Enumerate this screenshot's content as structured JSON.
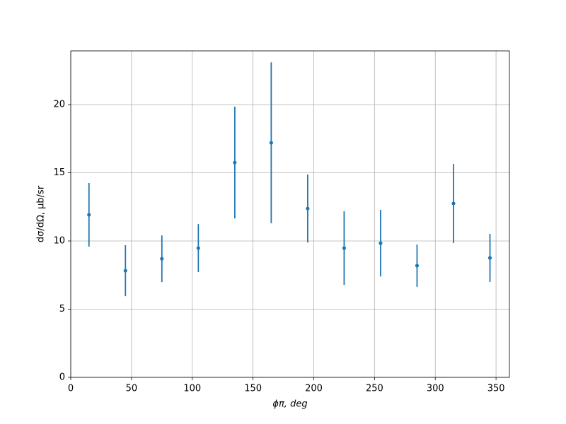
{
  "chart_data": {
    "type": "errorbar",
    "x": [
      15,
      45,
      75,
      105,
      135,
      165,
      195,
      225,
      255,
      285,
      315,
      345
    ],
    "values": [
      11.92,
      7.82,
      8.7,
      9.48,
      15.75,
      17.2,
      12.38,
      9.48,
      9.84,
      8.19,
      12.75,
      8.76
    ],
    "errors": [
      2.33,
      1.87,
      1.71,
      1.76,
      4.1,
      5.9,
      2.49,
      2.7,
      2.44,
      1.55,
      2.9,
      1.76
    ],
    "color": "#1f77b4",
    "xlabel": "ϕπ, deg",
    "ylabel": "dσ/dΩ, μb/sr",
    "xlim": [
      0,
      361
    ],
    "ylim": [
      0,
      23.94
    ],
    "xticks": [
      0,
      50,
      100,
      150,
      200,
      250,
      300,
      350
    ],
    "yticks": [
      0,
      5,
      10,
      15,
      20
    ],
    "grid": true
  }
}
